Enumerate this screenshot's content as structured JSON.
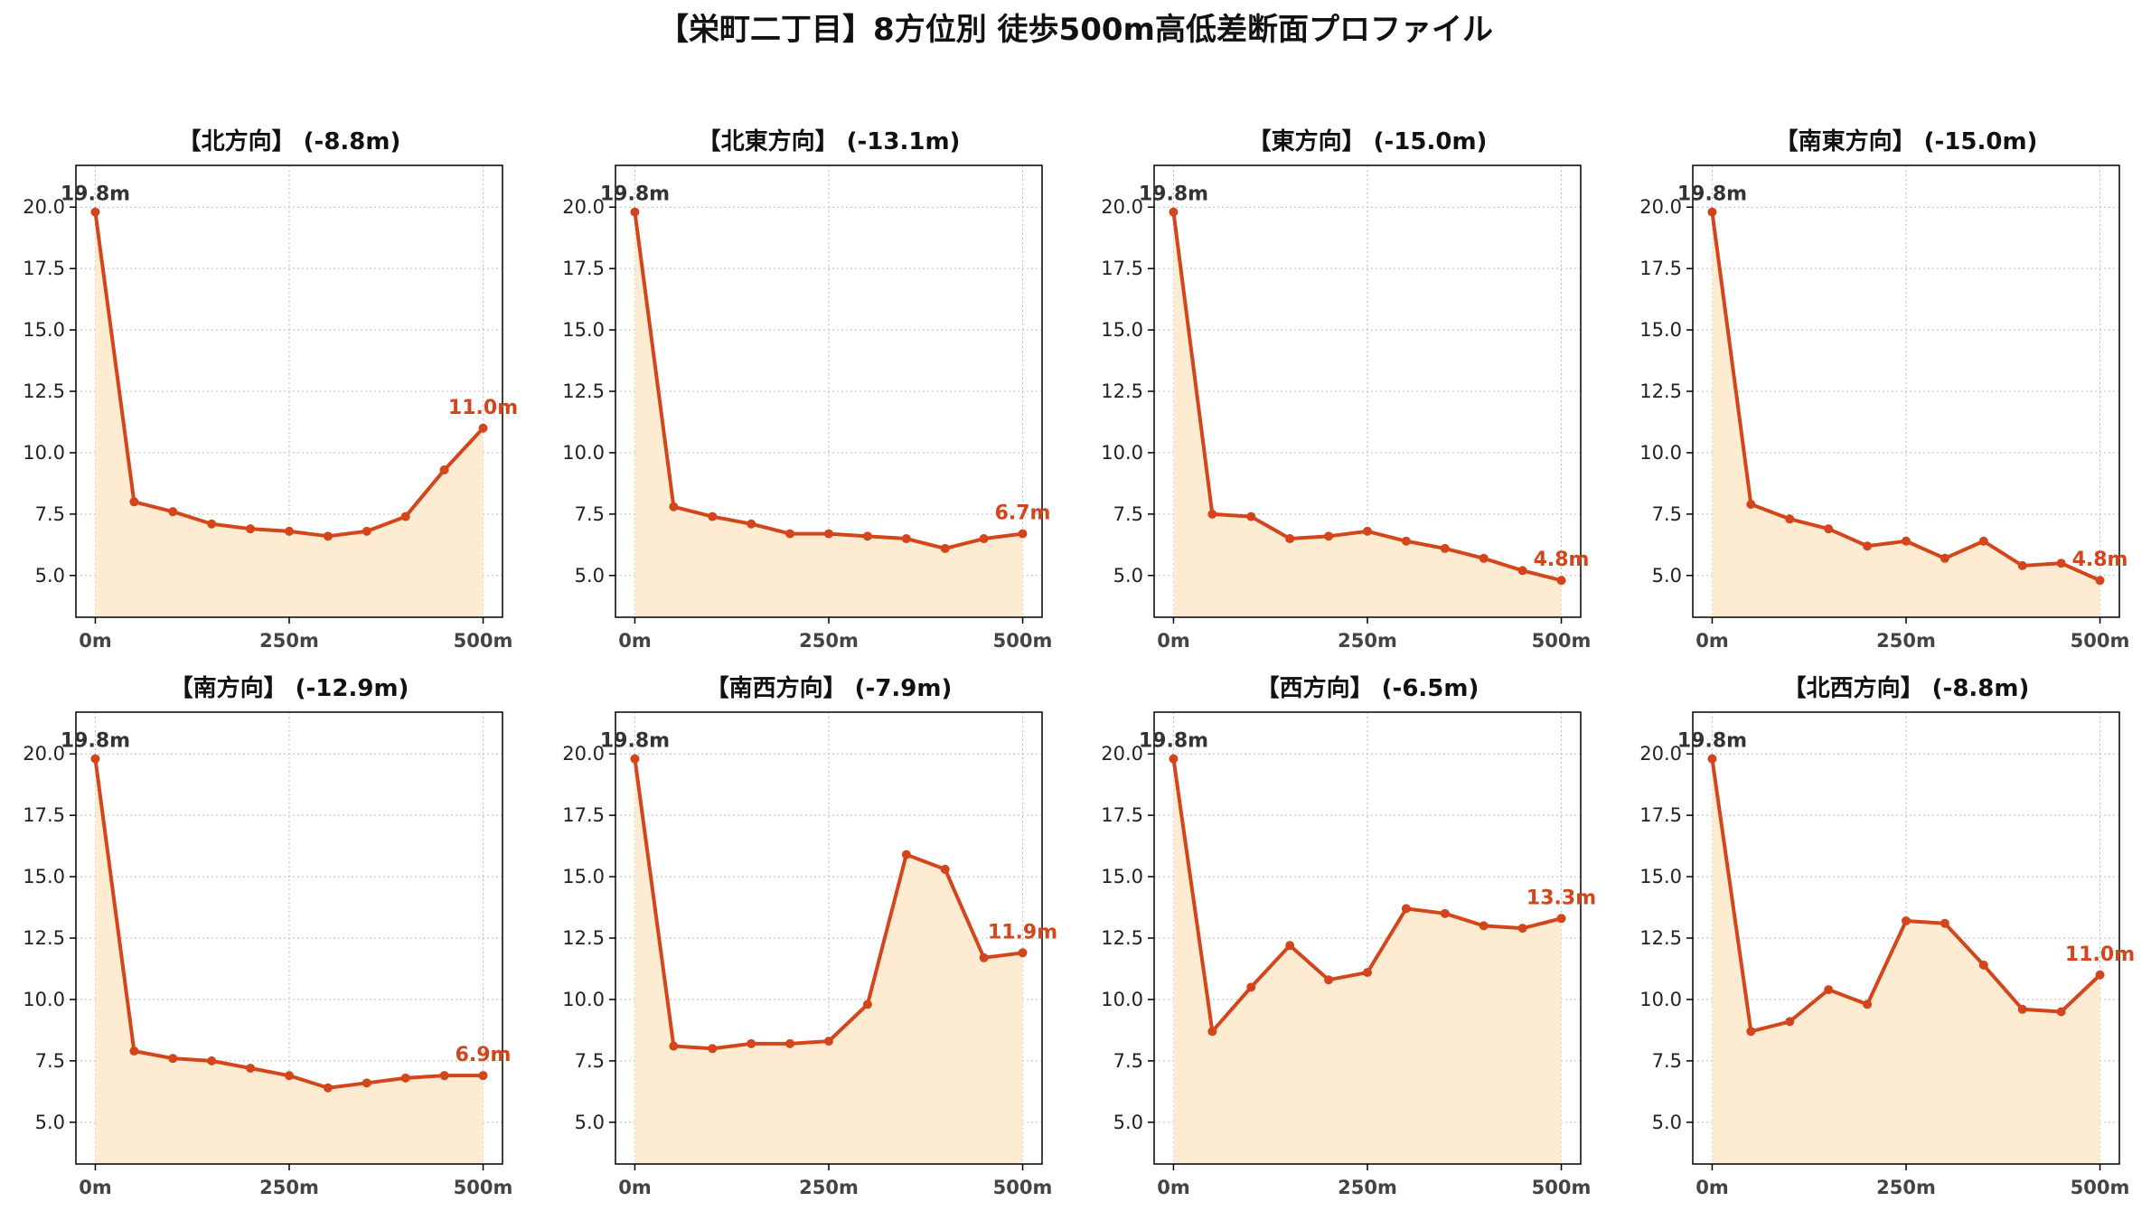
{
  "title": "【栄町二丁目】8方位別 徒歩500m高低差断面プロファイル",
  "colors": {
    "line": "#d4451b",
    "fill": "#fdecd2",
    "start_label": "#333333",
    "end_label": "#d4451b",
    "grid": "#bbbbbb",
    "axis": "#000000",
    "tick_label": "#222222",
    "x_tick_label": "#444444"
  },
  "chart_data": [
    {
      "type": "area",
      "title": "【北方向】 (-8.8m)",
      "x": [
        0,
        50,
        100,
        150,
        200,
        250,
        300,
        350,
        400,
        450,
        500
      ],
      "values": [
        19.8,
        8.0,
        7.6,
        7.1,
        6.9,
        6.8,
        6.6,
        6.8,
        7.4,
        9.3,
        11.0
      ],
      "start_label": "19.8m",
      "end_label": "11.0m",
      "x_ticks": [
        0,
        250,
        500
      ],
      "x_tick_labels": [
        "0m",
        "250m",
        "500m"
      ],
      "y_ticks": [
        5.0,
        7.5,
        10.0,
        12.5,
        15.0,
        17.5,
        20.0
      ],
      "y_tick_labels": [
        "5.0",
        "7.5",
        "10.0",
        "12.5",
        "15.0",
        "17.5",
        "20.0"
      ],
      "xlim": [
        -25,
        525
      ],
      "ylim": [
        3.3,
        21.7
      ],
      "grid": true
    },
    {
      "type": "area",
      "title": "【北東方向】 (-13.1m)",
      "x": [
        0,
        50,
        100,
        150,
        200,
        250,
        300,
        350,
        400,
        450,
        500
      ],
      "values": [
        19.8,
        7.8,
        7.4,
        7.1,
        6.7,
        6.7,
        6.6,
        6.5,
        6.1,
        6.5,
        6.7
      ],
      "start_label": "19.8m",
      "end_label": "6.7m",
      "x_ticks": [
        0,
        250,
        500
      ],
      "x_tick_labels": [
        "0m",
        "250m",
        "500m"
      ],
      "y_ticks": [
        5.0,
        7.5,
        10.0,
        12.5,
        15.0,
        17.5,
        20.0
      ],
      "y_tick_labels": [
        "5.0",
        "7.5",
        "10.0",
        "12.5",
        "15.0",
        "17.5",
        "20.0"
      ],
      "xlim": [
        -25,
        525
      ],
      "ylim": [
        3.3,
        21.7
      ],
      "grid": true
    },
    {
      "type": "area",
      "title": "【東方向】 (-15.0m)",
      "x": [
        0,
        50,
        100,
        150,
        200,
        250,
        300,
        350,
        400,
        450,
        500
      ],
      "values": [
        19.8,
        7.5,
        7.4,
        6.5,
        6.6,
        6.8,
        6.4,
        6.1,
        5.7,
        5.2,
        4.8
      ],
      "start_label": "19.8m",
      "end_label": "4.8m",
      "x_ticks": [
        0,
        250,
        500
      ],
      "x_tick_labels": [
        "0m",
        "250m",
        "500m"
      ],
      "y_ticks": [
        5.0,
        7.5,
        10.0,
        12.5,
        15.0,
        17.5,
        20.0
      ],
      "y_tick_labels": [
        "5.0",
        "7.5",
        "10.0",
        "12.5",
        "15.0",
        "17.5",
        "20.0"
      ],
      "xlim": [
        -25,
        525
      ],
      "ylim": [
        3.3,
        21.7
      ],
      "grid": true
    },
    {
      "type": "area",
      "title": "【南東方向】 (-15.0m)",
      "x": [
        0,
        50,
        100,
        150,
        200,
        250,
        300,
        350,
        400,
        450,
        500
      ],
      "values": [
        19.8,
        7.9,
        7.3,
        6.9,
        6.2,
        6.4,
        5.7,
        6.4,
        5.4,
        5.5,
        4.8
      ],
      "start_label": "19.8m",
      "end_label": "4.8m",
      "x_ticks": [
        0,
        250,
        500
      ],
      "x_tick_labels": [
        "0m",
        "250m",
        "500m"
      ],
      "y_ticks": [
        5.0,
        7.5,
        10.0,
        12.5,
        15.0,
        17.5,
        20.0
      ],
      "y_tick_labels": [
        "5.0",
        "7.5",
        "10.0",
        "12.5",
        "15.0",
        "17.5",
        "20.0"
      ],
      "xlim": [
        -25,
        525
      ],
      "ylim": [
        3.3,
        21.7
      ],
      "grid": true
    },
    {
      "type": "area",
      "title": "【南方向】 (-12.9m)",
      "x": [
        0,
        50,
        100,
        150,
        200,
        250,
        300,
        350,
        400,
        450,
        500
      ],
      "values": [
        19.8,
        7.9,
        7.6,
        7.5,
        7.2,
        6.9,
        6.4,
        6.6,
        6.8,
        6.9,
        6.9
      ],
      "start_label": "19.8m",
      "end_label": "6.9m",
      "x_ticks": [
        0,
        250,
        500
      ],
      "x_tick_labels": [
        "0m",
        "250m",
        "500m"
      ],
      "y_ticks": [
        5.0,
        7.5,
        10.0,
        12.5,
        15.0,
        17.5,
        20.0
      ],
      "y_tick_labels": [
        "5.0",
        "7.5",
        "10.0",
        "12.5",
        "15.0",
        "17.5",
        "20.0"
      ],
      "xlim": [
        -25,
        525
      ],
      "ylim": [
        3.3,
        21.7
      ],
      "grid": true
    },
    {
      "type": "area",
      "title": "【南西方向】 (-7.9m)",
      "x": [
        0,
        50,
        100,
        150,
        200,
        250,
        300,
        350,
        400,
        450,
        500
      ],
      "values": [
        19.8,
        8.1,
        8.0,
        8.2,
        8.2,
        8.3,
        9.8,
        15.9,
        15.3,
        11.7,
        11.9
      ],
      "start_label": "19.8m",
      "end_label": "11.9m",
      "x_ticks": [
        0,
        250,
        500
      ],
      "x_tick_labels": [
        "0m",
        "250m",
        "500m"
      ],
      "y_ticks": [
        5.0,
        7.5,
        10.0,
        12.5,
        15.0,
        17.5,
        20.0
      ],
      "y_tick_labels": [
        "5.0",
        "7.5",
        "10.0",
        "12.5",
        "15.0",
        "17.5",
        "20.0"
      ],
      "xlim": [
        -25,
        525
      ],
      "ylim": [
        3.3,
        21.7
      ],
      "grid": true
    },
    {
      "type": "area",
      "title": "【西方向】 (-6.5m)",
      "x": [
        0,
        50,
        100,
        150,
        200,
        250,
        300,
        350,
        400,
        450,
        500
      ],
      "values": [
        19.8,
        8.7,
        10.5,
        12.2,
        10.8,
        11.1,
        13.7,
        13.5,
        13.0,
        12.9,
        13.3
      ],
      "start_label": "19.8m",
      "end_label": "13.3m",
      "x_ticks": [
        0,
        250,
        500
      ],
      "x_tick_labels": [
        "0m",
        "250m",
        "500m"
      ],
      "y_ticks": [
        5.0,
        7.5,
        10.0,
        12.5,
        15.0,
        17.5,
        20.0
      ],
      "y_tick_labels": [
        "5.0",
        "7.5",
        "10.0",
        "12.5",
        "15.0",
        "17.5",
        "20.0"
      ],
      "xlim": [
        -25,
        525
      ],
      "ylim": [
        3.3,
        21.7
      ],
      "grid": true
    },
    {
      "type": "area",
      "title": "【北西方向】 (-8.8m)",
      "x": [
        0,
        50,
        100,
        150,
        200,
        250,
        300,
        350,
        400,
        450,
        500
      ],
      "values": [
        19.8,
        8.7,
        9.1,
        10.4,
        9.8,
        13.2,
        13.1,
        11.4,
        9.6,
        9.5,
        11.0
      ],
      "start_label": "19.8m",
      "end_label": "11.0m",
      "x_ticks": [
        0,
        250,
        500
      ],
      "x_tick_labels": [
        "0m",
        "250m",
        "500m"
      ],
      "y_ticks": [
        5.0,
        7.5,
        10.0,
        12.5,
        15.0,
        17.5,
        20.0
      ],
      "y_tick_labels": [
        "5.0",
        "7.5",
        "10.0",
        "12.5",
        "15.0",
        "17.5",
        "20.0"
      ],
      "xlim": [
        -25,
        525
      ],
      "ylim": [
        3.3,
        21.7
      ],
      "grid": true
    }
  ]
}
